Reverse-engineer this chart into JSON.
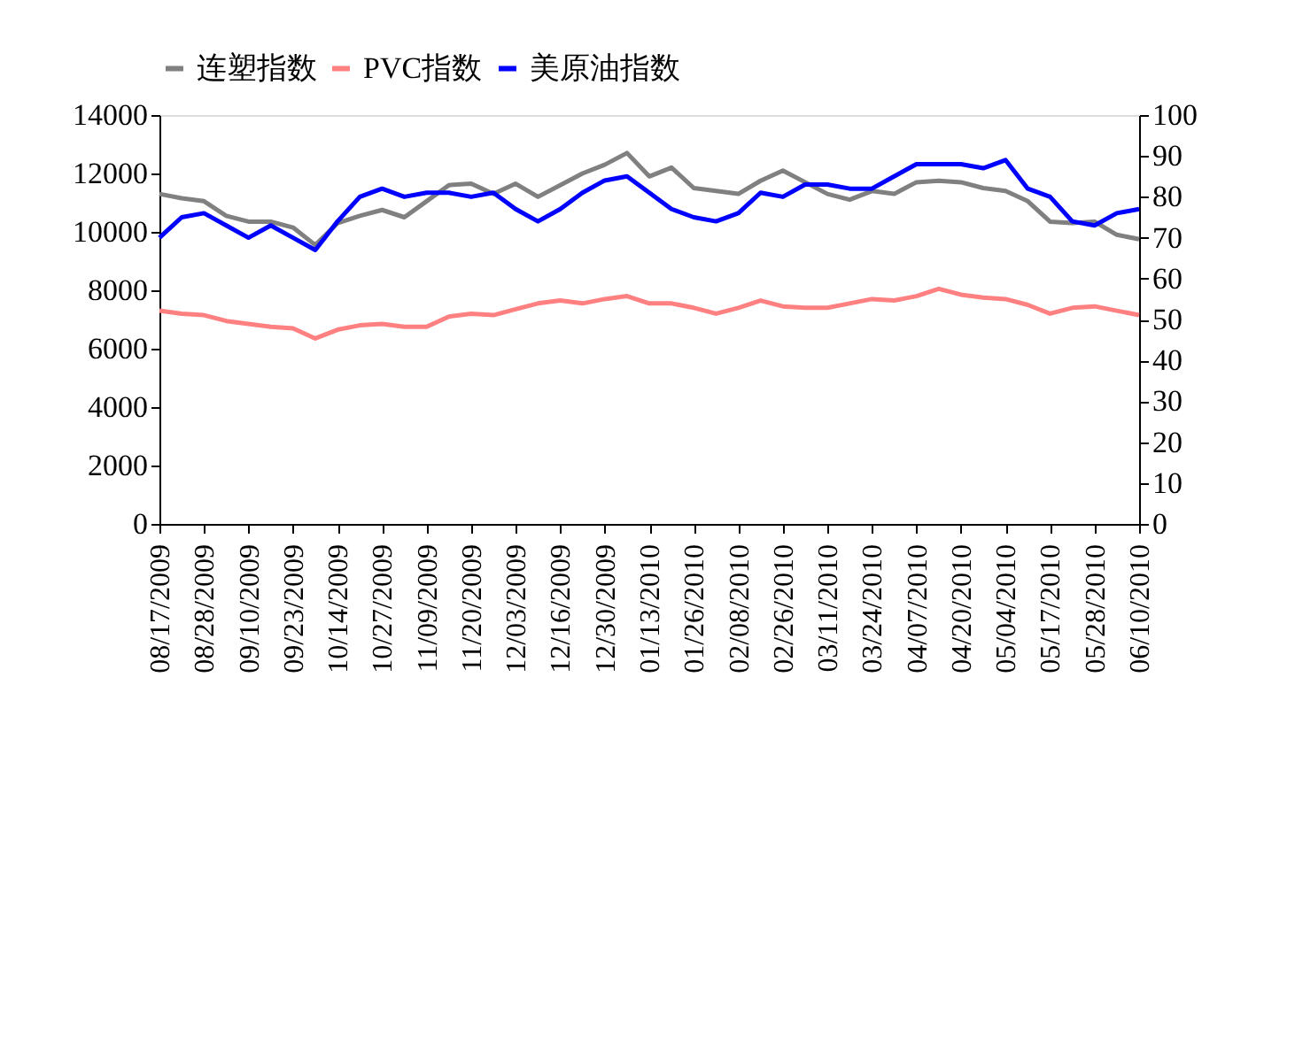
{
  "chart_data": {
    "type": "line",
    "categories": [
      "08/17/2009",
      null,
      "08/28/2009",
      null,
      "09/10/2009",
      null,
      "09/23/2009",
      null,
      "10/14/2009",
      null,
      "10/27/2009",
      null,
      "11/09/2009",
      null,
      "11/20/2009",
      null,
      "12/03/2009",
      null,
      "12/16/2009",
      null,
      "12/30/2009",
      null,
      "01/13/2010",
      null,
      "01/26/2010",
      null,
      "02/08/2010",
      null,
      "02/26/2010",
      null,
      "03/11/2010",
      null,
      "03/24/2010",
      null,
      "04/07/2010",
      null,
      "04/20/2010",
      null,
      "05/04/2010",
      null,
      "05/17/2010",
      null,
      "05/28/2010",
      null,
      "06/10/2010"
    ],
    "series": [
      {
        "name": "连塑指数",
        "color": "#808080",
        "axis": "y",
        "values": [
          11300,
          11150,
          11050,
          10550,
          10350,
          10350,
          10150,
          9550,
          10300,
          10550,
          10750,
          10500,
          11050,
          11600,
          11650,
          11300,
          11650,
          11200,
          11600,
          12000,
          12300,
          12700,
          11900,
          12200,
          11500,
          11400,
          11300,
          11750,
          12100,
          11700,
          11300,
          11100,
          11400,
          11300,
          11700,
          11750,
          11700,
          11500,
          11400,
          11050,
          10350,
          10300,
          10350,
          9900,
          9750
        ]
      },
      {
        "name": "PVC指数",
        "color": "#ff8080",
        "axis": "y",
        "values": [
          7300,
          7200,
          7150,
          6950,
          6850,
          6750,
          6700,
          6350,
          6650,
          6800,
          6850,
          6750,
          6750,
          7100,
          7200,
          7150,
          7350,
          7550,
          7650,
          7550,
          7700,
          7800,
          7550,
          7550,
          7400,
          7200,
          7400,
          7650,
          7450,
          7400,
          7400,
          7550,
          7700,
          7650,
          7800,
          8050,
          7850,
          7750,
          7700,
          7500,
          7200,
          7400,
          7450,
          7300,
          7150
        ]
      },
      {
        "name": "美原油指数",
        "color": "#0000ff",
        "axis": "y2",
        "values": [
          70,
          75,
          76,
          73,
          70,
          73,
          70,
          67,
          74,
          80,
          82,
          80,
          81,
          81,
          80,
          81,
          77,
          74,
          77,
          81,
          84,
          85,
          81,
          77,
          75,
          74,
          76,
          81,
          80,
          83,
          83,
          82,
          82,
          85,
          88,
          88,
          88,
          87,
          89,
          82,
          80,
          74,
          73,
          76,
          77
        ]
      }
    ],
    "ylim": [
      0,
      14000
    ],
    "yticks": [
      0,
      2000,
      4000,
      6000,
      8000,
      10000,
      12000,
      14000
    ],
    "y2lim": [
      0,
      100
    ],
    "y2ticks": [
      0,
      10,
      20,
      30,
      40,
      50,
      60,
      70,
      80,
      90,
      100
    ],
    "legend": "top",
    "grid": false
  }
}
